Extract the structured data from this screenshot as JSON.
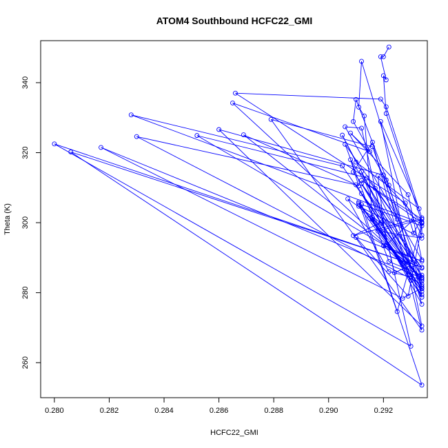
{
  "chart_data": {
    "type": "scatter",
    "title": "ATOM4 Southbound HCFC22_GMI",
    "xlabel": "HCFC22_GMI",
    "ylabel": "Theta (K)",
    "xlim": [
      0.2795,
      0.2936
    ],
    "ylim": [
      250,
      352
    ],
    "xticks": [
      0.28,
      0.282,
      0.284,
      0.286,
      0.288,
      0.29,
      0.292
    ],
    "xtick_labels": [
      "0.280",
      "0.282",
      "0.284",
      "0.286",
      "0.288",
      "0.290",
      "0.292"
    ],
    "yticks": [
      260,
      280,
      300,
      320,
      340
    ],
    "ytick_labels": [
      "260",
      "280",
      "300",
      "320",
      "340"
    ],
    "grid": false,
    "legend": "none",
    "connected": true,
    "color": "#0000ff",
    "series": [
      {
        "x": [
          0.2922,
          0.292,
          0.2919,
          0.2921,
          0.292,
          0.2921,
          0.2934,
          0.2934,
          0.2928,
          0.2866,
          0.2919,
          0.2921,
          0.2934,
          0.2931,
          0.2912,
          0.2911,
          0.2913,
          0.2916,
          0.293,
          0.2934,
          0.2922,
          0.291,
          0.2909,
          0.2921,
          0.2934,
          0.2865,
          0.2915,
          0.2908,
          0.2929,
          0.2934,
          0.2906,
          0.2912,
          0.2924,
          0.293,
          0.2869,
          0.2911,
          0.2908,
          0.2934,
          0.2909,
          0.2916,
          0.2929,
          0.2934,
          0.2879,
          0.2916,
          0.2934,
          0.2905,
          0.291,
          0.2933,
          0.2919,
          0.2934,
          0.286,
          0.292,
          0.2934,
          0.2912,
          0.2932,
          0.2852,
          0.2914,
          0.2925,
          0.2906,
          0.2922,
          0.2934,
          0.2912,
          0.2934,
          0.283,
          0.291,
          0.2929,
          0.2905,
          0.2828,
          0.2934,
          0.2925,
          0.2911,
          0.2934,
          0.2927,
          0.2817,
          0.2934,
          0.2917,
          0.293,
          0.28,
          0.2934,
          0.2806,
          0.2934,
          0.2912,
          0.2934,
          0.2929,
          0.291,
          0.2934,
          0.292,
          0.2927,
          0.2915,
          0.2934,
          0.2911,
          0.2934,
          0.2918,
          0.2934,
          0.2912,
          0.2934,
          0.2918,
          0.2921,
          0.2931,
          0.2909,
          0.2919,
          0.2907,
          0.2922,
          0.2934,
          0.2916,
          0.2934,
          0.2912,
          0.2919,
          0.2934,
          0.2911,
          0.2934
        ],
        "y": [
          350.2,
          347.4,
          347.4,
          340.8,
          342.0,
          331.2,
          300.2,
          296.4,
          305.6,
          337.0,
          335.3,
          333.1,
          301.4,
          297.0,
          346.1,
          333.0,
          330.5,
          300.9,
          283.5,
          279.4,
          310.7,
          335.2,
          328.9,
          312.2,
          284.4,
          334.2,
          320.3,
          325.6,
          308.0,
          289.4,
          327.4,
          327.0,
          285.7,
          287.8,
          325.1,
          310.5,
          318.0,
          287.0,
          314.5,
          323.0,
          285.1,
          269.3,
          329.5,
          321.7,
          281.8,
          325.0,
          317.3,
          304.0,
          328.9,
          270.5,
          326.6,
          313.6,
          276.7,
          308.3,
          288.2,
          324.9,
          312.8,
          301.0,
          322.4,
          288.9,
          285.0,
          311.1,
          282.4,
          324.6,
          310.8,
          288.6,
          316.2,
          330.8,
          299.8,
          274.6,
          305.9,
          281.3,
          278.4,
          321.5,
          284.2,
          309.8,
          264.7,
          322.5,
          287.3,
          320.2,
          253.6,
          305.2,
          299.1,
          279.0,
          295.8,
          289.0,
          293.4,
          288.3,
          301.3,
          280.4,
          304.7,
          295.6,
          297.6,
          301.0,
          312.1,
          300.0,
          313.4,
          293.6,
          300.9,
          296.3,
          300.0,
          306.8,
          286.0,
          283.8,
          301.5,
          278.7,
          314.6,
          299.6,
          283.3,
          305.5,
          281.1
        ]
      }
    ]
  }
}
